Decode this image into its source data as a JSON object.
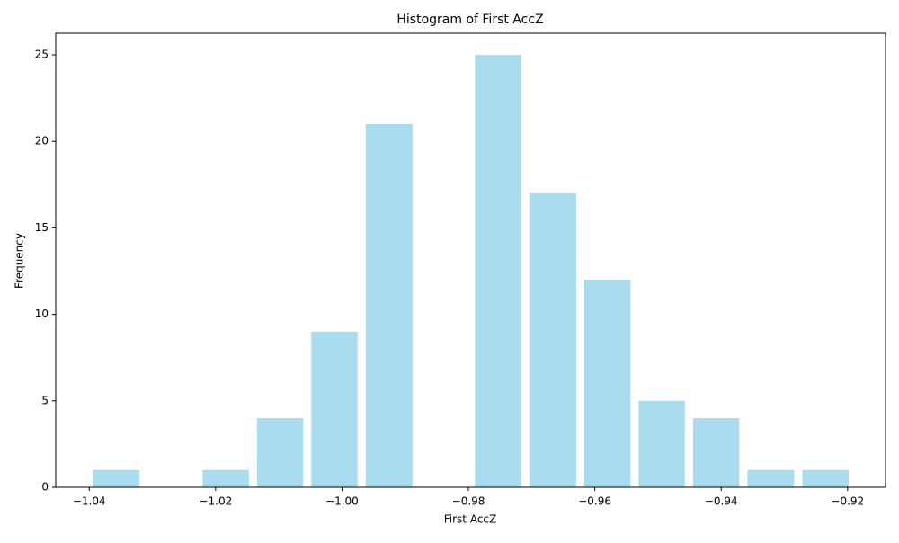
{
  "chart_data": {
    "type": "histogram",
    "title": "Histogram of First AccZ",
    "x_label": "First AccZ",
    "y_label": "Frequency",
    "bins": [
      -1.04,
      -1.0314,
      -1.0227,
      -1.0141,
      -1.0055,
      -0.9969,
      -0.9882,
      -0.9796,
      -0.971,
      -0.9623,
      -0.9537,
      -0.9451,
      -0.9365,
      -0.9278,
      -0.9192
    ],
    "values": [
      1,
      0,
      1,
      4,
      9,
      21,
      0,
      25,
      17,
      12,
      5,
      4,
      1,
      1
    ],
    "color": "#a9dcee",
    "xlim": [
      -1.0453,
      -0.914
    ],
    "xticks": [
      {
        "value": -1.04,
        "label": "−1.04"
      },
      {
        "value": -1.02,
        "label": "−1.02"
      },
      {
        "value": -1.0,
        "label": "−1.00"
      },
      {
        "value": -0.98,
        "label": "−0.98"
      },
      {
        "value": -0.96,
        "label": "−0.96"
      },
      {
        "value": -0.94,
        "label": "−0.94"
      },
      {
        "value": -0.92,
        "label": "−0.92"
      }
    ],
    "ylim": [
      0,
      26.25
    ],
    "yticks": [
      0,
      5,
      10,
      15,
      20,
      25
    ]
  }
}
